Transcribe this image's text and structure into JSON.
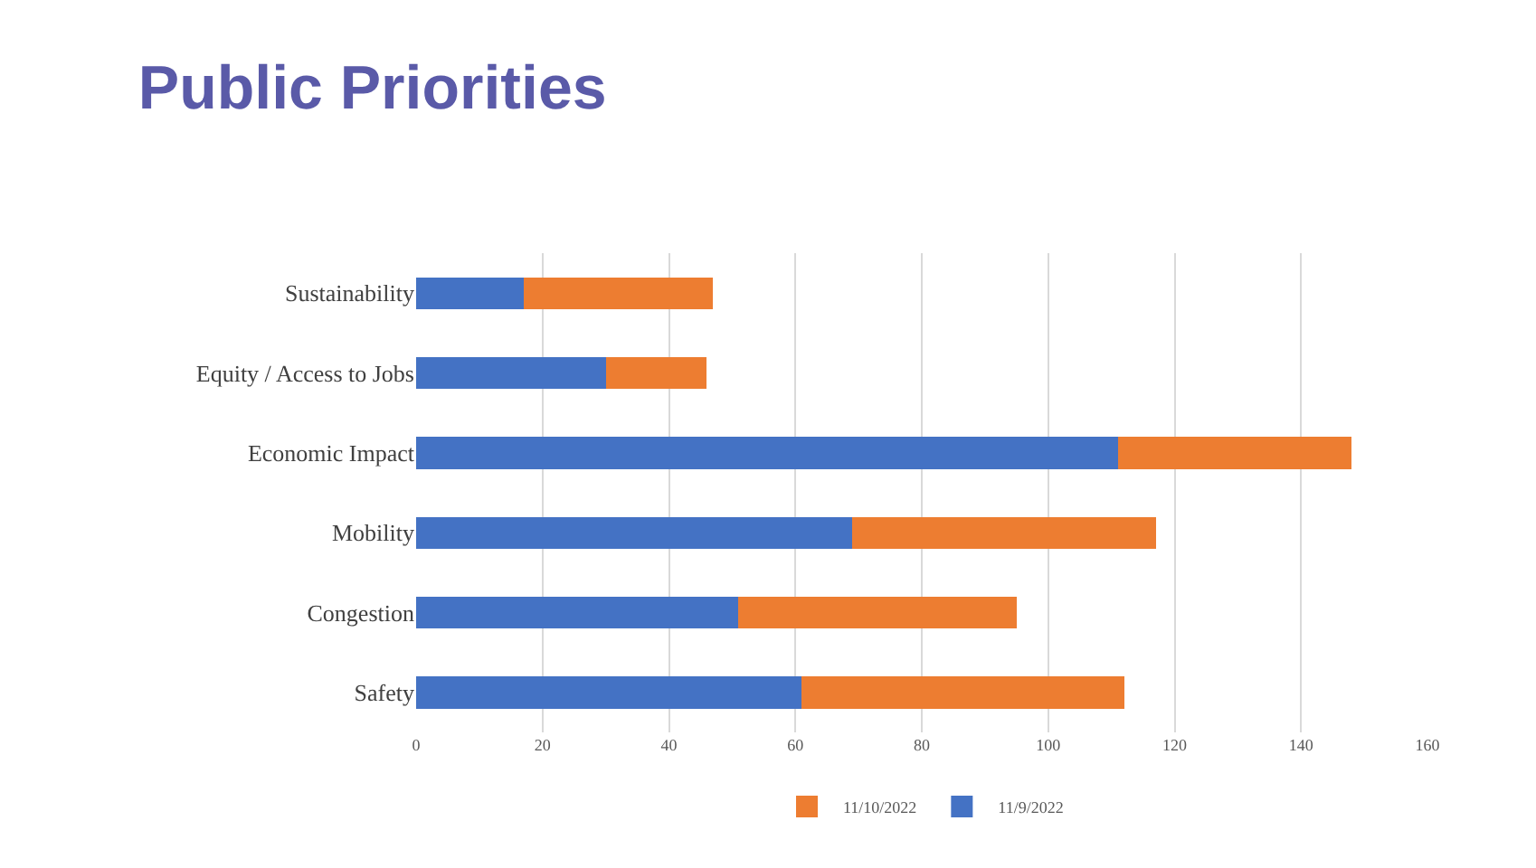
{
  "chart_data": {
    "type": "bar",
    "orientation": "horizontal",
    "stacked": true,
    "title": "Public Priorities",
    "categories": [
      "Sustainability",
      "Equity / Access to Jobs",
      "Economic Impact",
      "Mobility",
      "Congestion",
      "Safety"
    ],
    "series": [
      {
        "name": "11/9/2022",
        "color": "#4472c4",
        "values": [
          17,
          30,
          111,
          69,
          51,
          61
        ]
      },
      {
        "name": "11/10/2022",
        "color": "#ed7d31",
        "values": [
          30,
          16,
          37,
          48,
          44,
          51
        ]
      }
    ],
    "xlim": [
      0,
      160
    ],
    "xticks": [
      0,
      20,
      40,
      60,
      80,
      100,
      120,
      140,
      160
    ],
    "grid": "x",
    "legend": "bottom"
  }
}
